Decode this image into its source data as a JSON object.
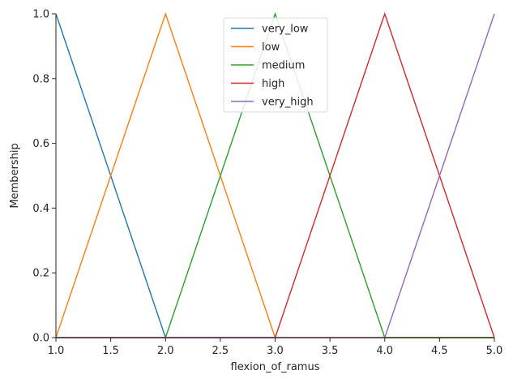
{
  "chart_data": {
    "type": "line",
    "xlabel": "flexion_of_ramus",
    "ylabel": "Membership",
    "xlim": [
      1.0,
      5.0
    ],
    "ylim": [
      0.0,
      1.0
    ],
    "x_ticks": [
      "1.0",
      "1.5",
      "2.0",
      "2.5",
      "3.0",
      "3.5",
      "4.0",
      "4.5",
      "5.0"
    ],
    "y_ticks": [
      "0.0",
      "0.2",
      "0.4",
      "0.6",
      "0.8",
      "1.0"
    ],
    "grid": false,
    "legend_position": "top-center",
    "series": [
      {
        "name": "very_low",
        "color": "#1f77b4",
        "x": [
          1,
          1,
          2,
          5
        ],
        "y": [
          1,
          1,
          0,
          0
        ]
      },
      {
        "name": "low",
        "color": "#ff7f0e",
        "x": [
          1,
          2,
          3,
          5
        ],
        "y": [
          0,
          1,
          0,
          0
        ]
      },
      {
        "name": "medium",
        "color": "#2ca02c",
        "x": [
          1,
          2,
          3,
          4,
          5
        ],
        "y": [
          0,
          0,
          1,
          0,
          0
        ]
      },
      {
        "name": "high",
        "color": "#d62728",
        "x": [
          1,
          3,
          4,
          5
        ],
        "y": [
          0,
          0,
          1,
          0
        ]
      },
      {
        "name": "very_high",
        "color": "#9467bd",
        "x": [
          1,
          4,
          5,
          5
        ],
        "y": [
          0,
          0,
          1,
          1
        ]
      }
    ]
  }
}
